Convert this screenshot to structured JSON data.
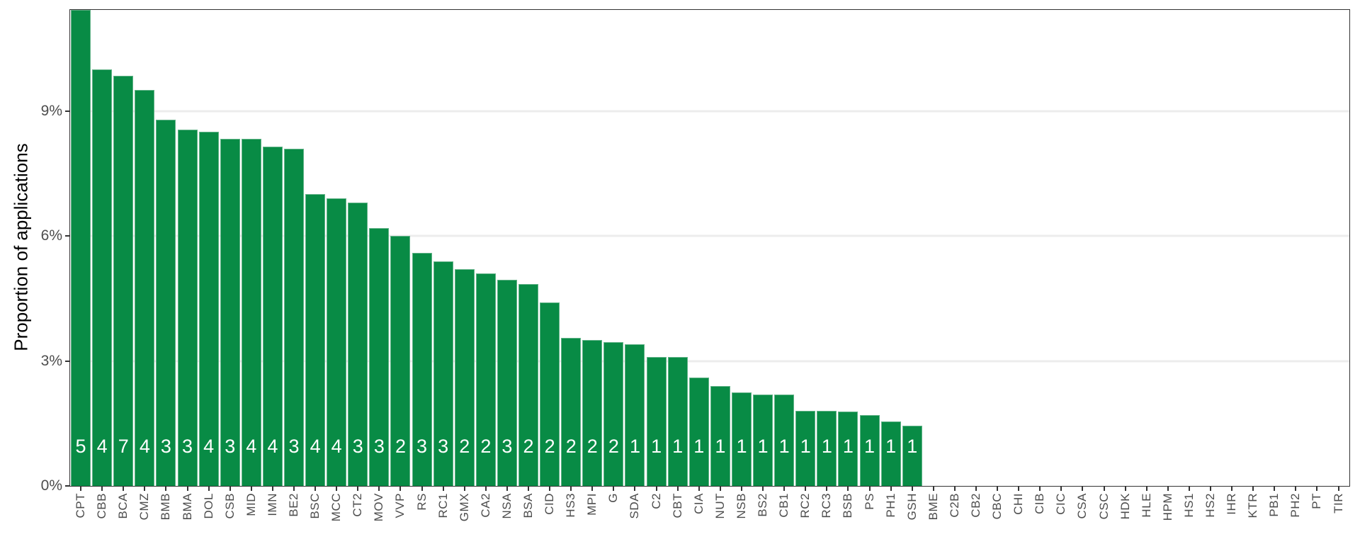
{
  "figure": {
    "background": "#ffffff"
  },
  "chart_data": {
    "type": "bar",
    "title": "",
    "xlabel": "",
    "ylabel": "Proportion of applications",
    "y_unit": "percent",
    "ylim": [
      0,
      11.43
    ],
    "yticks": [
      {
        "value": 0,
        "label": "0%"
      },
      {
        "value": 3,
        "label": "3%"
      },
      {
        "value": 6,
        "label": "6%"
      },
      {
        "value": 9,
        "label": "9%"
      }
    ],
    "grid": "horizontal-light",
    "legend": "none",
    "bar_color": "#088b45",
    "bar_edge_color": "#62b388",
    "bar_label_color": "#ffffff",
    "axis_text_color": "#4d4d4d",
    "panel_border_color": "#333333",
    "categories": [
      "CPT",
      "CBB",
      "BCA",
      "CMZ",
      "BMB",
      "BMA",
      "DOL",
      "CSB",
      "MID",
      "IMN",
      "BE2",
      "BSC",
      "MCC",
      "CT2",
      "MOV",
      "VVP",
      "RS",
      "RC1",
      "GMX",
      "CA2",
      "NSA",
      "BSA",
      "CID",
      "HS3",
      "MPI",
      "G",
      "SDA",
      "C2",
      "CBT",
      "CIA",
      "NUT",
      "NSB",
      "BS2",
      "CB1",
      "RC2",
      "RC3",
      "BSB",
      "PS",
      "PH1",
      "GSH",
      "BME",
      "C2B",
      "CB2",
      "CBC",
      "CHI",
      "CIB",
      "CIC",
      "CSA",
      "CSC",
      "HDK",
      "HLE",
      "HPM",
      "HS1",
      "HS2",
      "IHR",
      "KTR",
      "PB1",
      "PH2",
      "PT",
      "TIR"
    ],
    "values": [
      11.43,
      10.0,
      9.85,
      9.5,
      8.8,
      8.55,
      8.5,
      8.33,
      8.33,
      8.15,
      8.1,
      7.0,
      6.9,
      6.8,
      6.2,
      6.0,
      5.6,
      5.4,
      5.2,
      5.1,
      4.95,
      4.85,
      4.4,
      3.55,
      3.5,
      3.45,
      3.4,
      3.1,
      3.1,
      2.6,
      2.4,
      2.25,
      2.2,
      2.2,
      1.8,
      1.8,
      1.78,
      1.7,
      1.55,
      1.45,
      0,
      0,
      0,
      0,
      0,
      0,
      0,
      0,
      0,
      0,
      0,
      0,
      0,
      0,
      0,
      0,
      0,
      0,
      0,
      0
    ],
    "bar_labels": [
      "5",
      "4",
      "7",
      "4",
      "3",
      "3",
      "4",
      "3",
      "4",
      "4",
      "3",
      "4",
      "4",
      "3",
      "3",
      "2",
      "3",
      "3",
      "2",
      "2",
      "3",
      "2",
      "2",
      "2",
      "2",
      "2",
      "1",
      "1",
      "1",
      "1",
      "1",
      "1",
      "1",
      "1",
      "1",
      "1",
      "1",
      "1",
      "1",
      "1",
      "",
      "",
      "",
      "",
      "",
      "",
      "",
      "",
      "",
      "",
      "",
      "",
      "",
      "",
      "",
      "",
      "",
      "",
      "",
      ""
    ]
  }
}
